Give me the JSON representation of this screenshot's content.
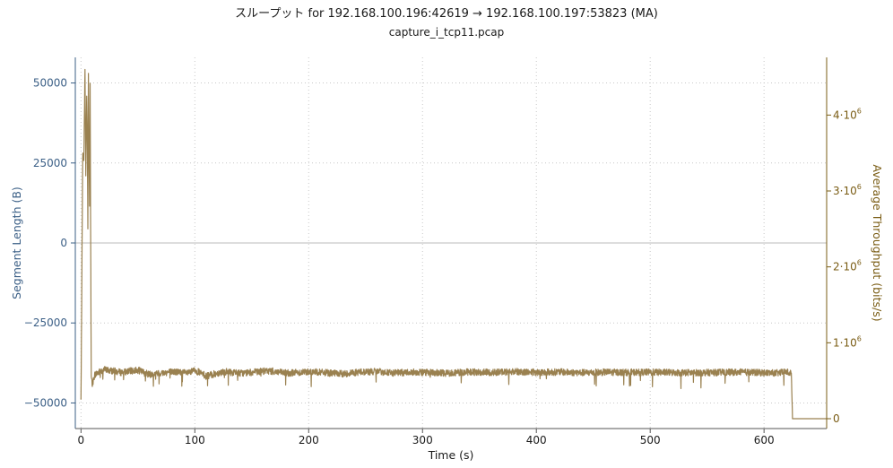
{
  "chart_data": {
    "type": "line",
    "title": "スループット for 192.168.100.196:42619 → 192.168.100.197:53823 (MA)",
    "subtitle": "capture_i_tcp11.pcap",
    "xlabel": "Time (s)",
    "ylabel_left": "Segment Length (B)",
    "ylabel_right": "Average Throughput (bits/s)",
    "xlim": [
      -5,
      655
    ],
    "ylim_left": [
      -58000,
      58000
    ],
    "ylim_right": [
      -130000,
      4760000
    ],
    "x_ticks": [
      0,
      100,
      200,
      300,
      400,
      500,
      600
    ],
    "y_left_ticks": [
      {
        "value": 50000,
        "label": "50000"
      },
      {
        "value": 25000,
        "label": "25000"
      },
      {
        "value": 0,
        "label": "0"
      },
      {
        "value": -25000,
        "label": "−25000"
      },
      {
        "value": -50000,
        "label": "−50000"
      }
    ],
    "y_right_ticks": [
      {
        "value": 4000000,
        "base": "4·10",
        "exp": "6"
      },
      {
        "value": 3000000,
        "base": "3·10",
        "exp": "6"
      },
      {
        "value": 2000000,
        "base": "2·10",
        "exp": "6"
      },
      {
        "value": 1000000,
        "base": "1·10",
        "exp": "6"
      },
      {
        "value": 0,
        "base": "0",
        "exp": ""
      }
    ],
    "grid": true,
    "colors": {
      "throughput": "#9a8150",
      "left_axis": "#3b5f86",
      "right_axis": "#7a5c14",
      "grid": "#c8c8c8",
      "zero_line": "#bbbbbb"
    },
    "series": [
      {
        "axis": "right",
        "points": [
          [
            0,
            250000
          ],
          [
            1.5,
            3500000
          ],
          [
            2.5,
            3400000
          ],
          [
            3.5,
            4600000
          ],
          [
            4.2,
            3200000
          ],
          [
            5,
            4250000
          ],
          [
            5.5,
            3800000
          ],
          [
            6,
            2500000
          ],
          [
            6.5,
            4550000
          ],
          [
            7,
            3600000
          ],
          [
            7.5,
            2800000
          ],
          [
            8,
            4420000
          ],
          [
            8.4,
            2700000
          ],
          [
            9,
            550000
          ],
          [
            10,
            450000
          ],
          [
            12,
            580000
          ],
          [
            20,
            650000
          ],
          [
            35,
            610000
          ],
          [
            50,
            640000
          ],
          [
            60,
            580000
          ],
          [
            80,
            620000
          ],
          [
            95,
            600000
          ],
          [
            100,
            640000
          ],
          [
            110,
            560000
          ],
          [
            125,
            620000
          ],
          [
            140,
            600000
          ],
          [
            150,
            610000
          ],
          [
            165,
            630000
          ],
          [
            180,
            600000
          ],
          [
            200,
            620000
          ],
          [
            215,
            605000
          ],
          [
            230,
            590000
          ],
          [
            245,
            615000
          ],
          [
            260,
            620000
          ],
          [
            275,
            600000
          ],
          [
            290,
            615000
          ],
          [
            300,
            612000
          ],
          [
            320,
            600000
          ],
          [
            340,
            615000
          ],
          [
            360,
            610000
          ],
          [
            380,
            620000
          ],
          [
            400,
            610000
          ],
          [
            420,
            615000
          ],
          [
            440,
            605000
          ],
          [
            460,
            612000
          ],
          [
            480,
            610000
          ],
          [
            500,
            612000
          ],
          [
            520,
            608000
          ],
          [
            540,
            605000
          ],
          [
            560,
            610000
          ],
          [
            580,
            612000
          ],
          [
            600,
            605000
          ],
          [
            610,
            600000
          ],
          [
            620,
            615000
          ],
          [
            624,
            600000
          ],
          [
            625,
            0
          ],
          [
            655,
            0
          ]
        ]
      }
    ]
  }
}
